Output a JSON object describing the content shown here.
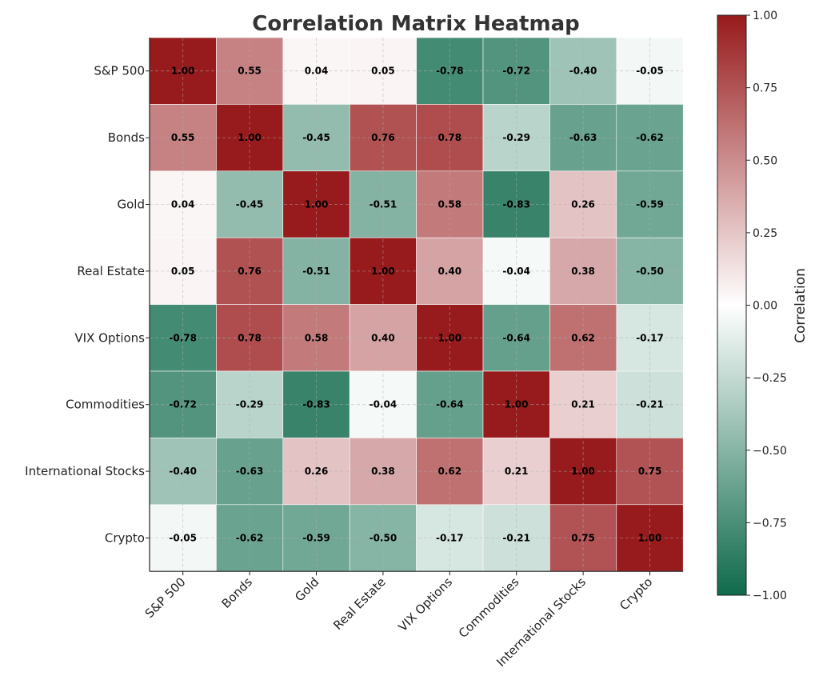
{
  "chart_data": {
    "type": "heatmap",
    "title": "Correlation Matrix Heatmap",
    "row_labels": [
      "S&P 500",
      "Bonds",
      "Gold",
      "Real Estate",
      "VIX Options",
      "Commodities",
      "International Stocks",
      "Crypto"
    ],
    "col_labels": [
      "S&P 500",
      "Bonds",
      "Gold",
      "Real Estate",
      "VIX Options",
      "Commodities",
      "International Stocks",
      "Crypto"
    ],
    "values": [
      [
        1.0,
        0.55,
        0.04,
        0.05,
        -0.78,
        -0.72,
        -0.4,
        -0.05
      ],
      [
        0.55,
        1.0,
        -0.45,
        0.76,
        0.78,
        -0.29,
        -0.63,
        -0.62
      ],
      [
        0.04,
        -0.45,
        1.0,
        -0.51,
        0.58,
        -0.83,
        0.26,
        -0.59
      ],
      [
        0.05,
        0.76,
        -0.51,
        1.0,
        0.4,
        -0.04,
        0.38,
        -0.5
      ],
      [
        -0.78,
        0.78,
        0.58,
        0.4,
        1.0,
        -0.64,
        0.62,
        -0.17
      ],
      [
        -0.72,
        -0.29,
        -0.83,
        -0.04,
        -0.64,
        1.0,
        0.21,
        -0.21
      ],
      [
        -0.4,
        -0.63,
        0.26,
        0.38,
        0.62,
        0.21,
        1.0,
        0.75
      ],
      [
        -0.05,
        -0.62,
        -0.59,
        -0.5,
        -0.17,
        -0.21,
        0.75,
        1.0
      ]
    ],
    "value_labels": [
      [
        "1.00",
        "0.55",
        "0.04",
        "0.05",
        "-0.78",
        "-0.72",
        "-0.40",
        "-0.05"
      ],
      [
        "0.55",
        "1.00",
        "-0.45",
        "0.76",
        "0.78",
        "-0.29",
        "-0.63",
        "-0.62"
      ],
      [
        "0.04",
        "-0.45",
        "1.00",
        "-0.51",
        "0.58",
        "-0.83",
        "0.26",
        "-0.59"
      ],
      [
        "0.05",
        "0.76",
        "-0.51",
        "1.00",
        "0.40",
        "-0.04",
        "0.38",
        "-0.50"
      ],
      [
        "-0.78",
        "0.78",
        "0.58",
        "0.40",
        "1.00",
        "-0.64",
        "0.62",
        "-0.17"
      ],
      [
        "-0.72",
        "-0.29",
        "-0.83",
        "-0.04",
        "-0.64",
        "1.00",
        "0.21",
        "-0.21"
      ],
      [
        "-0.40",
        "-0.63",
        "0.26",
        "0.38",
        "0.62",
        "0.21",
        "1.00",
        "0.75"
      ],
      [
        "-0.05",
        "-0.62",
        "-0.59",
        "-0.50",
        "-0.17",
        "-0.21",
        "0.75",
        "1.00"
      ]
    ],
    "colorbar": {
      "label": "Correlation",
      "range": [
        -1,
        1
      ],
      "ticks": [
        1.0,
        0.75,
        0.5,
        0.25,
        0.0,
        -0.25,
        -0.5,
        -0.75,
        -1.0
      ],
      "tick_labels": [
        "1.00",
        "0.75",
        "0.50",
        "0.25",
        "0.00",
        "−0.25",
        "−0.50",
        "−0.75",
        "−1.00"
      ],
      "placement": "right"
    },
    "colors": {
      "negative": "#0f6a4b",
      "neutral": "#ffffff",
      "positive": "#971a1c"
    },
    "grid": true
  }
}
